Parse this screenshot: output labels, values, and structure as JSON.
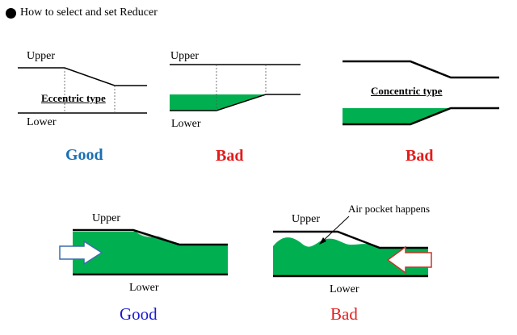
{
  "title": "How to select and set Reducer",
  "colors": {
    "good_bold": "#1a6fb3",
    "good_plain": "#1a1ad6",
    "bad": "#e31b1b",
    "fill": "#00b050",
    "line": "#000000"
  },
  "icons": {
    "bullet": "filled-circle",
    "arrow_in": "flow-arrow-right",
    "arrow_out": "flow-arrow-left"
  },
  "top_row": [
    {
      "upper": "Upper",
      "lower": "Lower",
      "type_label": "Eccentric type",
      "verdict": "Good"
    },
    {
      "upper": "Upper",
      "lower": "Lower",
      "verdict": "Bad"
    },
    {
      "type_label": "Concentric type",
      "verdict": "Bad"
    }
  ],
  "bottom_row": [
    {
      "upper": "Upper",
      "lower": "Lower",
      "verdict": "Good"
    },
    {
      "upper": "Upper",
      "lower": "Lower",
      "callout": "Air pocket happens",
      "verdict": "Bad"
    }
  ]
}
